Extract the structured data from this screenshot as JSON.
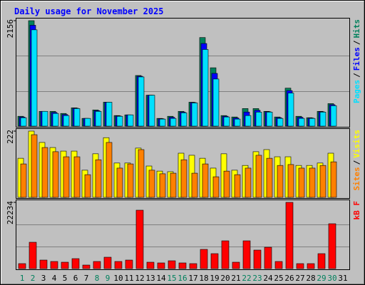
{
  "chart_data": {
    "type": "bar",
    "title": "Daily usage for November 2025",
    "categories": [
      "1",
      "2",
      "3",
      "4",
      "5",
      "6",
      "7",
      "8",
      "9",
      "10",
      "11",
      "12",
      "13",
      "14",
      "15",
      "16",
      "17",
      "18",
      "19",
      "20",
      "21",
      "22",
      "23",
      "24",
      "25",
      "26",
      "27",
      "28",
      "29",
      "30",
      "31"
    ],
    "category_colors": [
      "#00805c",
      "#00805c",
      "#000000",
      "#000000",
      "#000000",
      "#000000",
      "#000000",
      "#00805c",
      "#00805c",
      "#000000",
      "#000000",
      "#000000",
      "#000000",
      "#000000",
      "#00805c",
      "#00805c",
      "#000000",
      "#000000",
      "#000000",
      "#000000",
      "#000000",
      "#00805c",
      "#00805c",
      "#000000",
      "#000000",
      "#000000",
      "#000000",
      "#000000",
      "#00805c",
      "#00805c",
      "#000000"
    ],
    "legend_separator": "/",
    "panels": [
      {
        "ylim": [
          0,
          2156
        ],
        "yticks": [
          2156
        ],
        "grid": [
          718.67,
          1437.33
        ],
        "series": [
          {
            "name": "Hits",
            "color": "#00805c",
            "values": [
              201,
              2156,
              302,
              302,
              259,
              374,
              158,
              331,
              489,
              216,
              230,
              1035,
              632,
              158,
              201,
              302,
              489,
              1811,
              1193,
              216,
              187,
              359,
              359,
              302,
              187,
              776,
              201,
              172,
              302,
              460,
              null
            ]
          },
          {
            "name": "Files",
            "color": "#0000ff",
            "values": [
              186,
              2062,
              302,
              280,
              237,
              366,
              158,
              316,
              489,
              208,
              230,
              1020,
              632,
              151,
              180,
              288,
              482,
              1689,
              1078,
              202,
              166,
              288,
              323,
              294,
              172,
              726,
              180,
              165,
              294,
              438,
              null
            ]
          },
          {
            "name": "Pages",
            "color": "#00e0ff",
            "values": [
              172,
              1969,
              302,
              259,
              216,
              359,
              158,
              302,
              489,
              201,
              230,
              1006,
              632,
              144,
              158,
              273,
              474,
              1567,
              963,
              187,
              144,
              216,
              287,
              287,
              158,
              676,
              158,
              158,
              287,
              417,
              null
            ]
          }
        ]
      },
      {
        "ylim": [
          0,
          222
        ],
        "yticks": [
          222
        ],
        "grid": [],
        "series": [
          {
            "name": "Visits",
            "color": "#ffff00",
            "values": [
              131,
              222,
              184,
              167,
              155,
              155,
              91,
              146,
              200,
              115,
              115,
              165,
              105,
              88,
              86,
              148,
              141,
              131,
              98,
              146,
              91,
              107,
              153,
              160,
              136,
              136,
              107,
              107,
              115,
              148,
              null
            ]
          },
          {
            "name": "Sites",
            "color": "#ff8000",
            "values": [
              112,
              210,
              167,
              153,
              136,
              136,
              76,
              126,
              184,
              98,
              112,
              160,
              91,
              79,
              81,
              126,
              81,
              112,
              69,
              88,
              76,
              98,
              141,
              131,
              107,
              110,
              98,
              98,
              107,
              119,
              null
            ]
          }
        ]
      },
      {
        "ylim": [
          0,
          22234
        ],
        "yticks": [
          22234
        ],
        "grid": [
          7411.33,
          14822.67
        ],
        "series": [
          {
            "name": "kB F",
            "color": "#ff0000",
            "values": [
              1674,
              8846,
              2869,
              2391,
              2152,
              3347,
              1195,
              2391,
              3825,
              2391,
              2869,
              19604,
              2152,
              1913,
              2630,
              1913,
              1674,
              6455,
              5021,
              9324,
              2152,
              9324,
              6216,
              7172,
              2391,
              22234,
              1674,
              1674,
              5021,
              15062,
              null
            ]
          }
        ]
      }
    ]
  }
}
